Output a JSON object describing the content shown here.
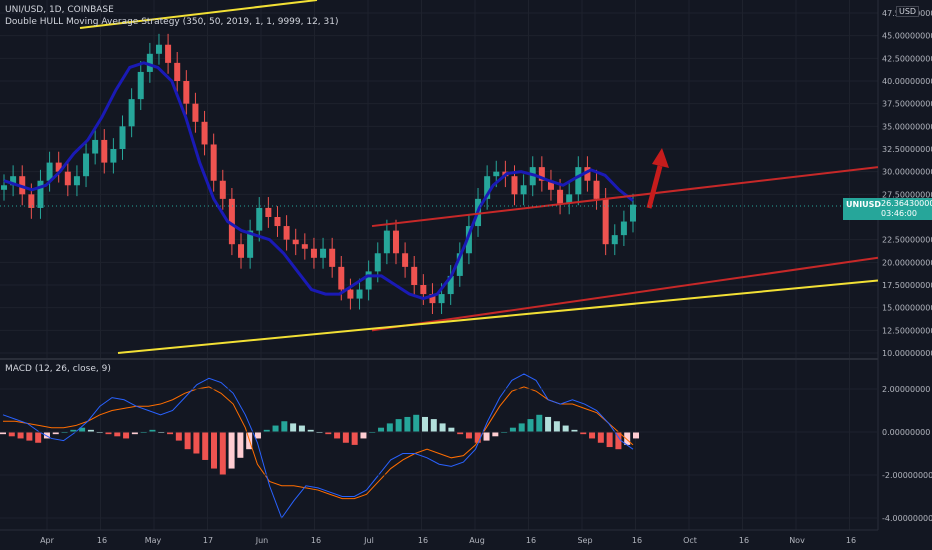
{
  "header": {
    "symbol_line": "UNI/USD, 1D, COINBASE",
    "indicator_line": "Double HULL Moving Average Strategy (350, 50, 2019, 1, 1, 9999, 12, 31)"
  },
  "macd_title": "MACD (12, 26, close, 9)",
  "price_unit": "USD",
  "last_price": {
    "symbol": "UNIUSD",
    "value": "26.36430000",
    "countdown": "03:46:00"
  },
  "colors": {
    "bg": "#131722",
    "up": "#26a69a",
    "down": "#ef5350",
    "hull": "#1a1ab5",
    "channel": "#c62828",
    "support": "#f2e035",
    "macd": "#2962ff",
    "signal": "#ff6d00",
    "arrow": "#c61c1c"
  },
  "chart_data": [
    {
      "type": "candlestick",
      "title": "",
      "x_tick_labels": [
        "Apr",
        "16",
        "May",
        "17",
        "Jun",
        "16",
        "Jul",
        "16",
        "Aug",
        "16",
        "Sep",
        "16",
        "Oct",
        "16",
        "Nov",
        "16"
      ],
      "y_tick_labels": [
        "47.50000000",
        "45.00000000",
        "42.50000000",
        "40.00000000",
        "37.50000000",
        "35.00000000",
        "32.50000000",
        "30.00000000",
        "27.50000000",
        "22.50000000",
        "20.00000000",
        "17.50000000",
        "15.00000000",
        "12.50000000",
        "10.00000000"
      ],
      "ylim": [
        10,
        48
      ],
      "close_series": [
        28.5,
        29.5,
        27.5,
        26.0,
        29.0,
        31.0,
        30.0,
        28.5,
        29.5,
        32.0,
        33.5,
        31.0,
        32.5,
        35.0,
        38.0,
        41.0,
        43.0,
        44.0,
        42.0,
        40.0,
        37.5,
        35.5,
        33.0,
        29.0,
        27.0,
        22.0,
        20.5,
        23.5,
        26.0,
        25.0,
        24.0,
        22.5,
        22.0,
        21.5,
        20.5,
        21.5,
        19.5,
        17.0,
        16.0,
        17.0,
        19.0,
        21.0,
        23.5,
        21.0,
        19.5,
        17.5,
        16.5,
        15.5,
        16.5,
        18.5,
        21.0,
        24.0,
        27.0,
        29.5,
        30.0,
        29.5,
        27.5,
        28.5,
        30.5,
        29.0,
        28.0,
        26.5,
        27.5,
        30.5,
        29.0,
        27.0,
        22.0,
        23.0,
        24.5,
        26.36
      ],
      "hull_ma": [
        29.0,
        28.5,
        28.0,
        28.5,
        30.0,
        32.0,
        33.5,
        36.0,
        39.0,
        41.5,
        42.0,
        41.5,
        40.0,
        36.0,
        31.0,
        27.0,
        24.5,
        23.5,
        23.0,
        22.5,
        21.0,
        19.0,
        17.0,
        16.5,
        16.5,
        17.5,
        18.5,
        18.5,
        17.5,
        16.5,
        16.0,
        16.5,
        18.5,
        22.0,
        26.0,
        28.5,
        29.8,
        30.0,
        29.6,
        29.0,
        28.5,
        29.4,
        30.2,
        29.6,
        28.0,
        26.8
      ],
      "channel_upper": [
        [
          24.0,
          37.0
        ],
        [
          30.5,
          45.0
        ]
      ],
      "channel_lower": [
        [
          12.5,
          27.0
        ],
        [
          20.5,
          30.5
        ]
      ],
      "support_line": [
        [
          10.0,
          20.5
        ],
        [
          18.0,
          22.0
        ]
      ],
      "annotations": [
        "red arrow pointing up"
      ]
    },
    {
      "type": "macd",
      "y_tick_labels": [
        "2.00000000",
        "0.00000000",
        "-2.00000000",
        "-4.00000000"
      ],
      "ylim": [
        -4.3,
        3.0
      ],
      "histogram": [
        -0.1,
        -0.2,
        -0.3,
        -0.4,
        -0.5,
        -0.3,
        -0.1,
        0.0,
        0.1,
        0.2,
        0.1,
        0.0,
        -0.1,
        -0.2,
        -0.3,
        -0.1,
        0.0,
        0.1,
        0.0,
        -0.1,
        -0.4,
        -0.8,
        -1.0,
        -1.3,
        -1.7,
        -2.0,
        -1.7,
        -1.2,
        -0.8,
        -0.3,
        0.1,
        0.3,
        0.5,
        0.4,
        0.3,
        0.1,
        0.0,
        -0.1,
        -0.3,
        -0.5,
        -0.6,
        -0.3,
        0.0,
        0.2,
        0.4,
        0.6,
        0.7,
        0.8,
        0.7,
        0.6,
        0.4,
        0.2,
        -0.1,
        -0.3,
        -0.5,
        -0.4,
        -0.2,
        0.0,
        0.2,
        0.4,
        0.6,
        0.8,
        0.7,
        0.5,
        0.3,
        0.1,
        -0.1,
        -0.3,
        -0.5,
        -0.7,
        -0.8,
        -0.6,
        -0.3
      ],
      "macd_line": [
        0.8,
        0.6,
        0.4,
        0.0,
        -0.3,
        -0.4,
        0.0,
        0.5,
        1.2,
        1.6,
        1.5,
        1.2,
        1.0,
        0.8,
        1.0,
        1.6,
        2.2,
        2.5,
        2.3,
        1.8,
        0.8,
        -0.5,
        -2.5,
        -4.0,
        -3.2,
        -2.5,
        -2.6,
        -2.8,
        -3.0,
        -3.0,
        -2.7,
        -2.0,
        -1.3,
        -1.0,
        -1.0,
        -1.2,
        -1.5,
        -1.6,
        -1.4,
        -0.8,
        0.5,
        1.6,
        2.4,
        2.7,
        2.4,
        1.5,
        1.3,
        1.5,
        1.3,
        1.0,
        0.4,
        -0.4,
        -0.8
      ],
      "signal_line": [
        0.5,
        0.5,
        0.4,
        0.3,
        0.2,
        0.2,
        0.3,
        0.5,
        0.8,
        1.0,
        1.1,
        1.2,
        1.2,
        1.3,
        1.5,
        1.8,
        2.0,
        2.1,
        1.8,
        1.3,
        0.2,
        -1.5,
        -2.3,
        -2.5,
        -2.5,
        -2.6,
        -2.7,
        -2.9,
        -3.1,
        -3.1,
        -2.9,
        -2.3,
        -1.7,
        -1.3,
        -1.0,
        -0.8,
        -1.0,
        -1.2,
        -1.1,
        -0.6,
        0.3,
        1.2,
        1.9,
        2.1,
        1.9,
        1.5,
        1.3,
        1.3,
        1.1,
        0.9,
        0.4,
        -0.1,
        -0.6
      ]
    }
  ]
}
